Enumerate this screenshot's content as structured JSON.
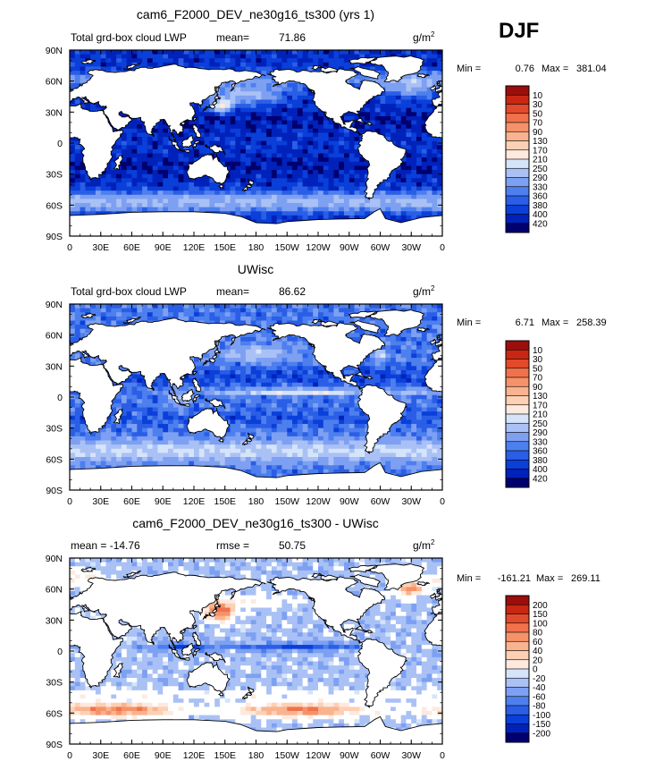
{
  "season": "DJF",
  "colors": {
    "abs": [
      "#00006e",
      "#0022bb",
      "#0a3fd9",
      "#2a5ee6",
      "#4d7fee",
      "#7ea0f2",
      "#a9c1f5",
      "#d6e4fa",
      "#fde9de",
      "#fcd0b4",
      "#f9b38e",
      "#f69269",
      "#f0714b",
      "#e24a2b",
      "#c92714",
      "#9c0e0c"
    ],
    "diff": [
      "#00006e",
      "#0022bb",
      "#0a3fd9",
      "#2a5ee6",
      "#4d7fee",
      "#7ea0f2",
      "#a9c1f5",
      "#d6e4fa",
      "#ffffff",
      "#fde9de",
      "#fcd0b4",
      "#f9b38e",
      "#f69269",
      "#f0714b",
      "#e24a2b",
      "#c92714",
      "#9c0e0c"
    ],
    "land": "#ffffff",
    "coast": "#000000"
  },
  "chart_data": [
    {
      "type": "heatmap",
      "title": "cam6_F2000_DEV_ne30g16_ts300 (yrs 1)",
      "left_label": "Total grd-box cloud LWP",
      "stat_label": "mean=",
      "stat_value": "71.86",
      "units": "g/m",
      "units_sup": "2",
      "min_label": "Min =",
      "min_value": "0.76",
      "max_label": "Max =",
      "max_value": "381.04",
      "mean": 71.86,
      "min": 0.76,
      "max": 381.04,
      "colorbar_levels": [
        "10",
        "30",
        "50",
        "70",
        "90",
        "130",
        "170",
        "210",
        "250",
        "290",
        "330",
        "360",
        "380",
        "400",
        "420"
      ],
      "xticks": [
        "0",
        "30E",
        "60E",
        "90E",
        "120E",
        "150E",
        "180",
        "150W",
        "120W",
        "90W",
        "60W",
        "30W",
        "0"
      ],
      "yticks": [
        "90N",
        "60N",
        "30N",
        "0",
        "30S",
        "60S",
        "90S"
      ],
      "xlim": [
        0,
        360
      ],
      "ylim": [
        -90,
        90
      ]
    },
    {
      "type": "heatmap",
      "title": "UWisc",
      "left_label": "Total grd-box cloud LWP",
      "stat_label": "mean=",
      "stat_value": "86.62",
      "units": "g/m",
      "units_sup": "2",
      "min_label": "Min =",
      "min_value": "6.71",
      "max_label": "Max =",
      "max_value": "258.39",
      "mean": 86.62,
      "min": 6.71,
      "max": 258.39,
      "colorbar_levels": [
        "10",
        "30",
        "50",
        "70",
        "90",
        "130",
        "170",
        "210",
        "250",
        "290",
        "330",
        "360",
        "380",
        "400",
        "420"
      ],
      "xticks": [
        "0",
        "30E",
        "60E",
        "90E",
        "120E",
        "150E",
        "180",
        "150W",
        "120W",
        "90W",
        "60W",
        "30W",
        "0"
      ],
      "yticks": [
        "90N",
        "60N",
        "30N",
        "0",
        "30S",
        "60S",
        "90S"
      ],
      "xlim": [
        0,
        360
      ],
      "ylim": [
        -90,
        90
      ]
    },
    {
      "type": "heatmap",
      "title": "cam6_F2000_DEV_ne30g16_ts300 - UWisc",
      "left_label": "mean = -14.76",
      "stat_label": "rmse =",
      "stat_value": "50.75",
      "units": "g/m",
      "units_sup": "2",
      "min_label": "Min =",
      "min_value": "-161.21",
      "max_label": "Max =",
      "max_value": "269.11",
      "mean": -14.76,
      "rmse": 50.75,
      "min": -161.21,
      "max": 269.11,
      "colorbar_levels": [
        "200",
        "150",
        "100",
        "80",
        "60",
        "40",
        "20",
        "0",
        "-20",
        "-40",
        "-60",
        "-80",
        "-100",
        "-150",
        "-200"
      ],
      "xticks": [
        "0",
        "30E",
        "60E",
        "90E",
        "120E",
        "150E",
        "180",
        "150W",
        "120W",
        "90W",
        "60W",
        "30W",
        "0"
      ],
      "yticks": [
        "90N",
        "60N",
        "30N",
        "0",
        "30S",
        "60S",
        "90S"
      ],
      "xlim": [
        0,
        360
      ],
      "ylim": [
        -90,
        90
      ]
    }
  ]
}
